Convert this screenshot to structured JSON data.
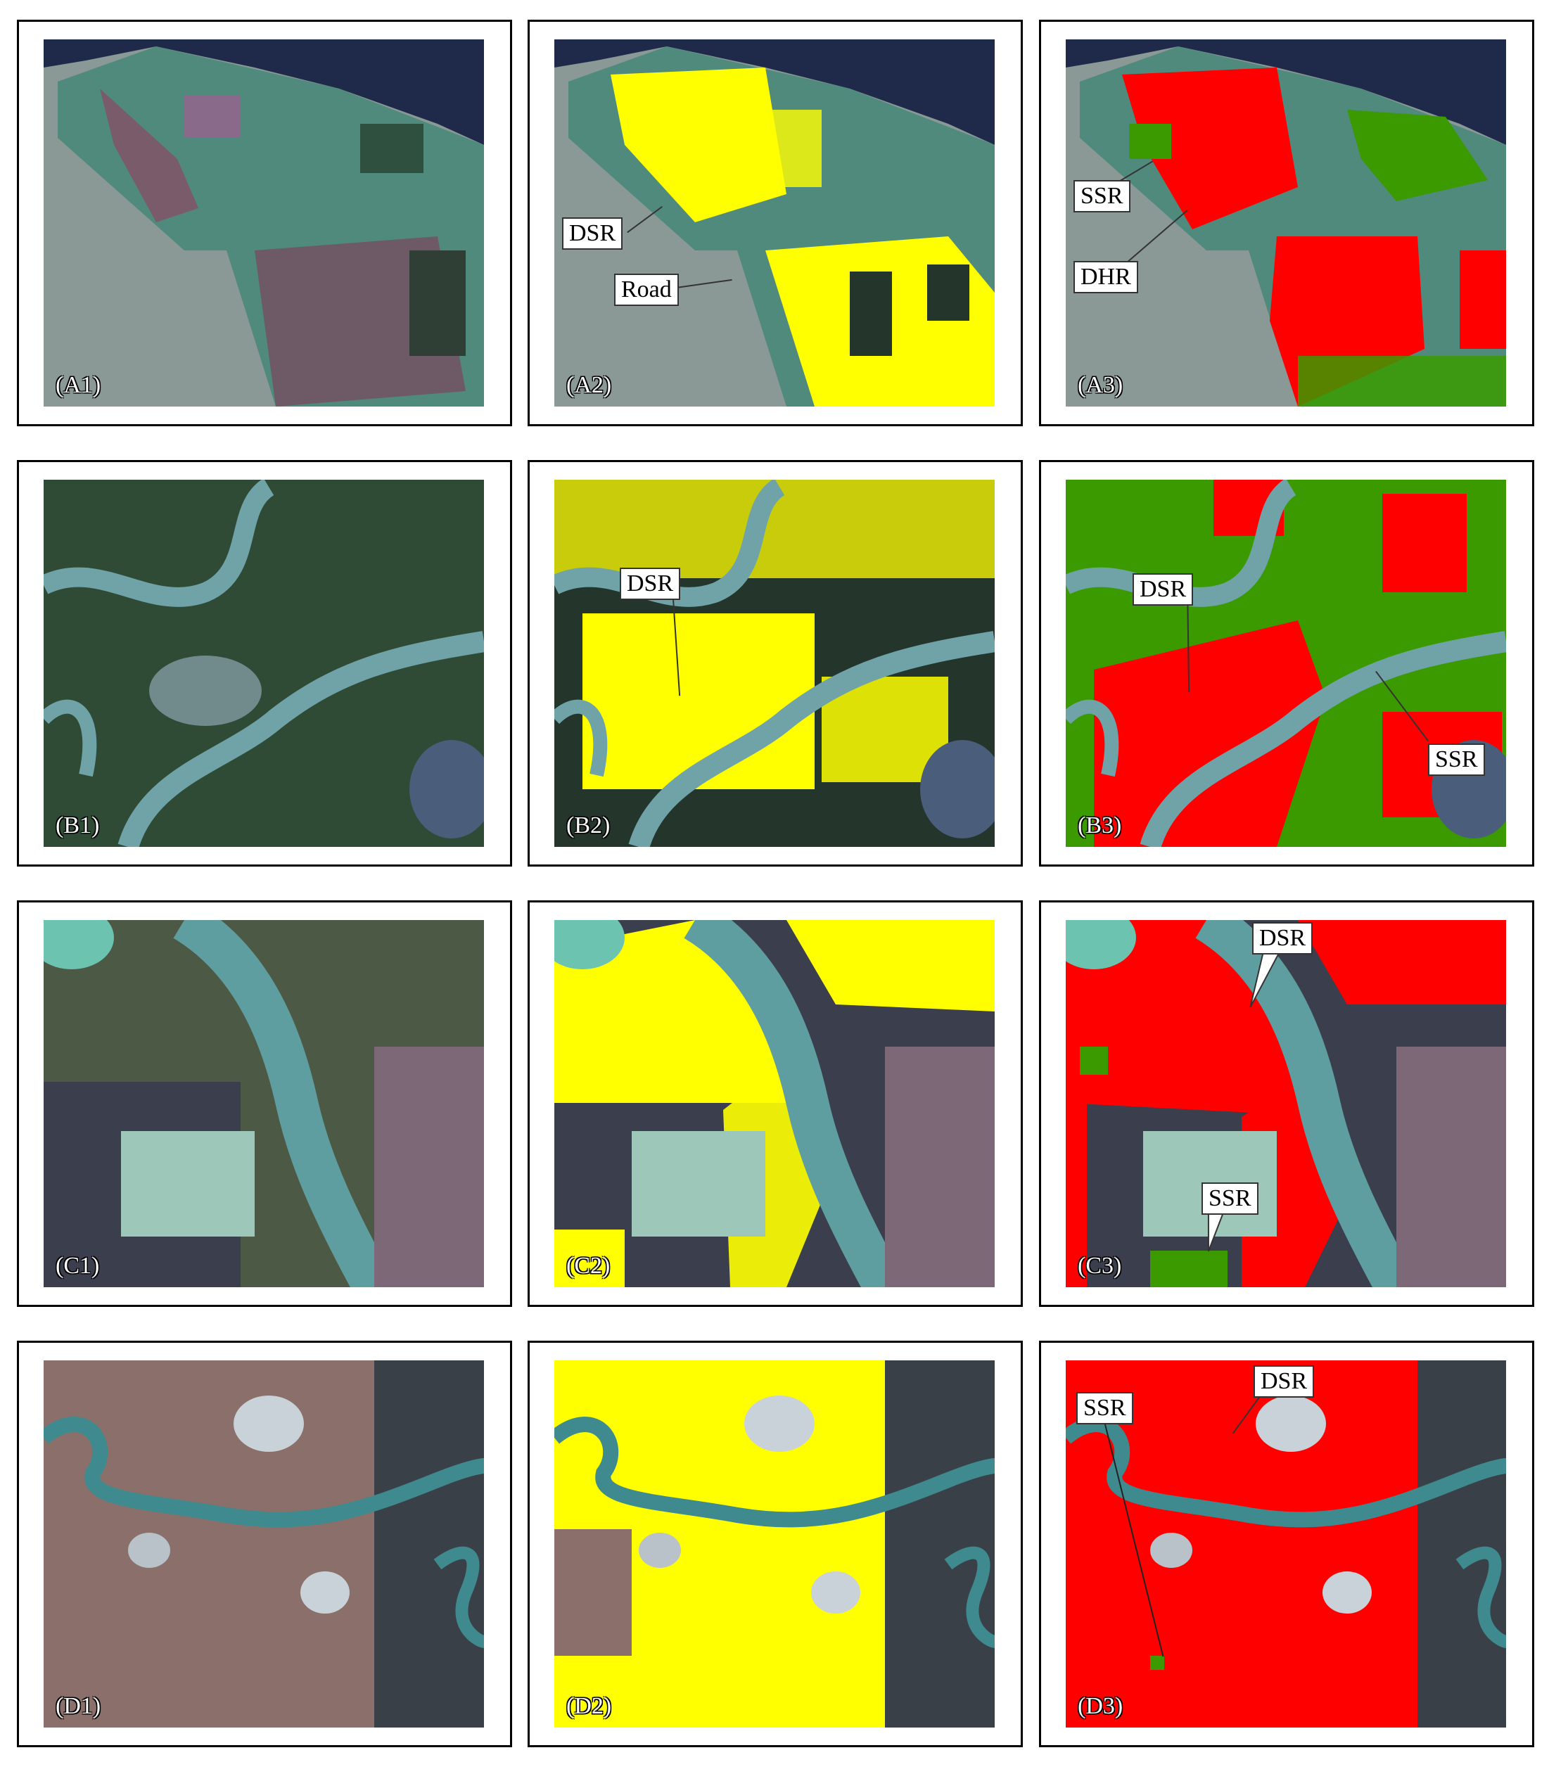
{
  "panels": {
    "A1": {
      "label": "(A1)"
    },
    "A2": {
      "label": "(A2)",
      "callouts": {
        "dsr": "DSR",
        "road": "Road"
      }
    },
    "A3": {
      "label": "(A3)",
      "callouts": {
        "ssr": "SSR",
        "dhr": "DHR"
      }
    },
    "B1": {
      "label": "(B1)"
    },
    "B2": {
      "label": "(B2)",
      "callouts": {
        "dsr": "DSR"
      }
    },
    "B3": {
      "label": "(B3)",
      "callouts": {
        "dsr": "DSR",
        "ssr": "SSR"
      }
    },
    "C1": {
      "label": "(C1)"
    },
    "C2": {
      "label": "(C2)"
    },
    "C3": {
      "label": "(C3)",
      "callouts": {
        "dsr": "DSR",
        "ssr": "SSR"
      }
    },
    "D1": {
      "label": "(D1)"
    },
    "D2": {
      "label": "(D2)"
    },
    "D3": {
      "label": "(D3)",
      "callouts": {
        "dsr": "DSR",
        "ssr": "SSR"
      }
    }
  },
  "colors": {
    "rice_overlay": "#ffff00",
    "dsr_class": "#ff0000",
    "ssr_class": "#3a9a00",
    "water": "#5f9ea0",
    "sea": "#1f2a4a",
    "fields": "#46635a"
  }
}
